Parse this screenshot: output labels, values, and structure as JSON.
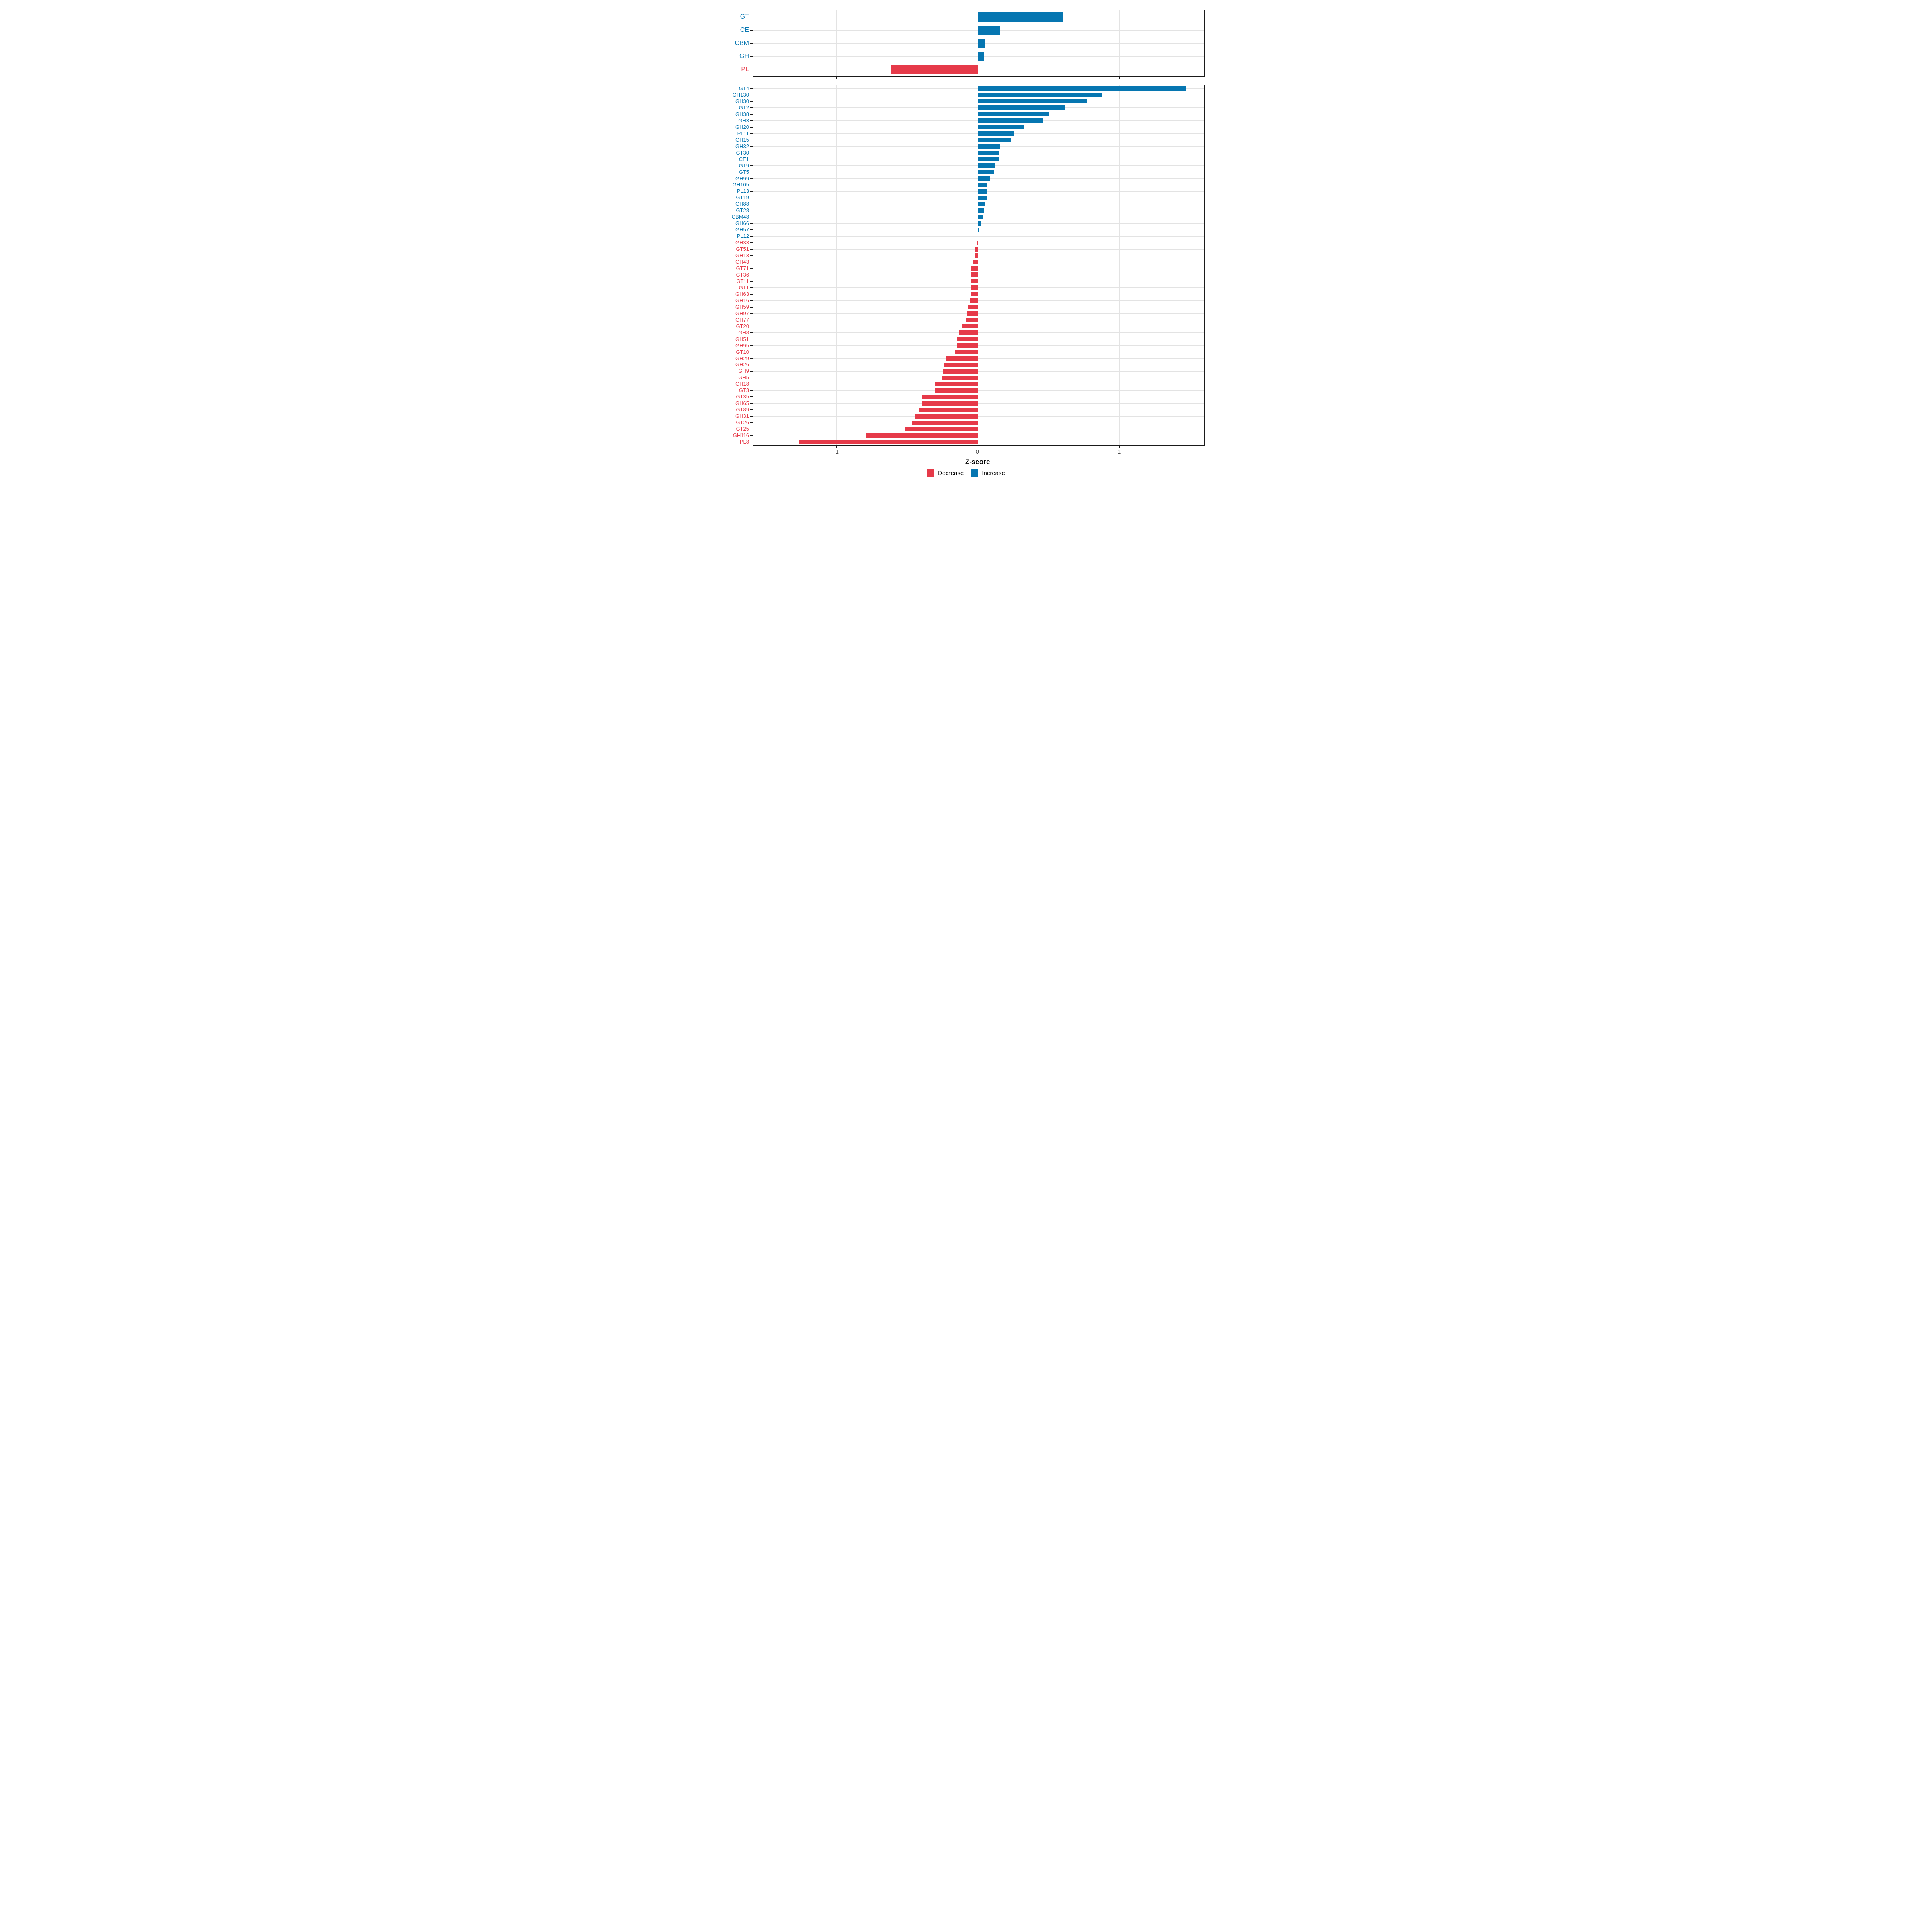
{
  "axis": {
    "xlabel": "Z-score",
    "tick_values": [
      -1,
      0,
      1
    ],
    "tick_labels": [
      "-1",
      "0",
      "1"
    ],
    "xlim": [
      -1.59,
      1.6
    ]
  },
  "legend": {
    "items": [
      {
        "label": "Decrease",
        "color": "#e63a49"
      },
      {
        "label": "Increase",
        "color": "#0676b1"
      }
    ]
  },
  "colors": {
    "increase": "#0676b1",
    "decrease": "#e63a49",
    "grid": "#e3e3e3",
    "panel_border": "#1a1a1a",
    "tick_text": "#4d4d4d"
  },
  "chart_data": [
    {
      "type": "bar",
      "orientation": "horizontal",
      "name": "cazyme-class-panel",
      "title": "",
      "xlabel": "Z-score",
      "xlim": [
        -1.59,
        1.6
      ],
      "xticks": [
        -1,
        0,
        1
      ],
      "grid": true,
      "bar_fraction": 0.68,
      "label_font_px": 16,
      "categories": [
        "GT",
        "CE",
        "CBM",
        "GH",
        "PL"
      ],
      "values": [
        0.6,
        0.154,
        0.047,
        0.042,
        -0.614
      ]
    },
    {
      "type": "bar",
      "orientation": "horizontal",
      "name": "cazyme-family-panel",
      "title": "",
      "xlabel": "Z-score",
      "xlim": [
        -1.59,
        1.6
      ],
      "xticks": [
        -1,
        0,
        1
      ],
      "grid": true,
      "bar_fraction": 0.7,
      "label_font_px": 13,
      "categories": [
        "GT4",
        "GH130",
        "GH30",
        "GT2",
        "GH38",
        "GH3",
        "GH20",
        "PL11",
        "GH15",
        "GH32",
        "GT30",
        "CE1",
        "GT9",
        "GT5",
        "GH99",
        "GH105",
        "PL13",
        "GT19",
        "GH88",
        "GT28",
        "CBM48",
        "GH66",
        "GH57",
        "PL12",
        "GH33",
        "GT51",
        "GH13",
        "GH43",
        "GT71",
        "GT36",
        "GT11",
        "GT1",
        "GH63",
        "GH16",
        "GH59",
        "GH97",
        "GH77",
        "GT20",
        "GH8",
        "GH51",
        "GH95",
        "GT10",
        "GH29",
        "GH26",
        "GH9",
        "GH5",
        "GH18",
        "GT3",
        "GT35",
        "GH65",
        "GT89",
        "GH31",
        "GT26",
        "GT25",
        "GH116",
        "PL8"
      ],
      "values": [
        1.47,
        0.88,
        0.77,
        0.616,
        0.504,
        0.458,
        0.325,
        0.258,
        0.231,
        0.157,
        0.152,
        0.145,
        0.124,
        0.115,
        0.086,
        0.067,
        0.064,
        0.062,
        0.049,
        0.04,
        0.037,
        0.024,
        0.008,
        0.005,
        -0.005,
        -0.018,
        -0.022,
        -0.037,
        -0.048,
        -0.048,
        -0.048,
        -0.049,
        -0.049,
        -0.054,
        -0.071,
        -0.079,
        -0.085,
        -0.113,
        -0.137,
        -0.149,
        -0.15,
        -0.162,
        -0.228,
        -0.242,
        -0.247,
        -0.252,
        -0.302,
        -0.305,
        -0.395,
        -0.396,
        -0.418,
        -0.442,
        -0.465,
        -0.515,
        -0.79,
        -1.268
      ]
    }
  ]
}
